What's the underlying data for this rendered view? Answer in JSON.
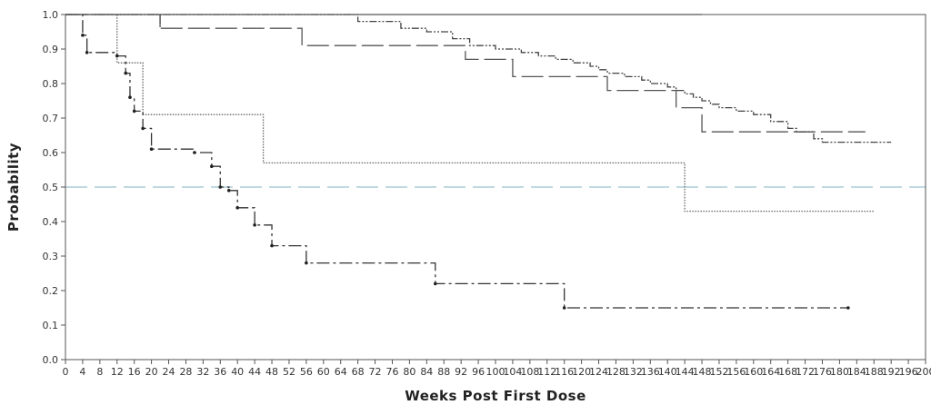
{
  "chart_data": {
    "type": "line",
    "title": "",
    "xlabel": "Weeks Post First Dose",
    "ylabel": "Probability",
    "xlim": [
      0,
      200
    ],
    "ylim": [
      0,
      1.0
    ],
    "x_ticks": [
      0,
      4,
      8,
      12,
      16,
      20,
      24,
      28,
      32,
      36,
      40,
      44,
      48,
      52,
      56,
      60,
      64,
      68,
      72,
      76,
      80,
      84,
      88,
      92,
      96,
      100,
      104,
      108,
      112,
      116,
      120,
      124,
      128,
      132,
      136,
      140,
      144,
      148,
      152,
      156,
      160,
      164,
      168,
      172,
      176,
      180,
      184,
      188,
      192,
      196,
      200
    ],
    "x_tick_labels": [
      "0",
      "4",
      "8",
      "12",
      "16",
      "20",
      "24",
      "28",
      "32",
      "36",
      "40",
      "44",
      "48",
      "52",
      "56",
      "60",
      "64",
      "68",
      "72",
      "76",
      "80",
      "84",
      "88",
      "92",
      "96",
      "100",
      "104",
      "108",
      "112",
      "116",
      "120",
      "124",
      "128",
      "132",
      "136",
      "140",
      "144",
      "148",
      "152",
      "156",
      "160",
      "164",
      "168",
      "172",
      "176",
      "180",
      "184",
      "188",
      "192",
      "196",
      "200"
    ],
    "y_ticks": [
      0,
      0.1,
      0.2,
      0.3,
      0.4,
      0.5,
      0.6,
      0.7,
      0.8,
      0.9,
      1.0
    ],
    "y_tick_labels": [
      "0.0",
      "0.1",
      "0.2",
      "0.3",
      "0.4",
      "0.5",
      "0.6",
      "0.7",
      "0.8",
      "0.9",
      "1.0"
    ],
    "reference_line": {
      "y": 0.5,
      "color": "#9cc3d0"
    },
    "series": [
      {
        "style": "solid",
        "color": "#555555",
        "steps": [
          [
            0,
            1.0
          ],
          [
            148,
            1.0
          ]
        ],
        "censor_marks": [
          22
        ]
      },
      {
        "style": "long-dash",
        "color": "#555555",
        "steps": [
          [
            0,
            1.0
          ],
          [
            22,
            0.96
          ],
          [
            55,
            0.91
          ],
          [
            93,
            0.87
          ],
          [
            104,
            0.82
          ],
          [
            126,
            0.78
          ],
          [
            142,
            0.73
          ],
          [
            148,
            0.66
          ],
          [
            186,
            0.66
          ]
        ],
        "censor_marks": []
      },
      {
        "style": "dash-dot-dot",
        "color": "#444444",
        "steps": [
          [
            0,
            1.0
          ],
          [
            68,
            0.98
          ],
          [
            78,
            0.96
          ],
          [
            84,
            0.95
          ],
          [
            90,
            0.93
          ],
          [
            94,
            0.91
          ],
          [
            100,
            0.9
          ],
          [
            106,
            0.89
          ],
          [
            110,
            0.88
          ],
          [
            114,
            0.87
          ],
          [
            118,
            0.86
          ],
          [
            122,
            0.85
          ],
          [
            124,
            0.84
          ],
          [
            126,
            0.83
          ],
          [
            130,
            0.82
          ],
          [
            134,
            0.81
          ],
          [
            136,
            0.8
          ],
          [
            140,
            0.79
          ],
          [
            142,
            0.78
          ],
          [
            144,
            0.77
          ],
          [
            146,
            0.76
          ],
          [
            148,
            0.75
          ],
          [
            150,
            0.74
          ],
          [
            152,
            0.73
          ],
          [
            156,
            0.72
          ],
          [
            160,
            0.71
          ],
          [
            164,
            0.69
          ],
          [
            168,
            0.67
          ],
          [
            170,
            0.66
          ],
          [
            174,
            0.64
          ],
          [
            176,
            0.63
          ],
          [
            192,
            0.63
          ]
        ],
        "censor_marks": []
      },
      {
        "style": "dotted",
        "color": "#666666",
        "steps": [
          [
            0,
            1.0
          ],
          [
            12,
            0.86
          ],
          [
            18,
            0.71
          ],
          [
            46,
            0.57
          ],
          [
            144,
            0.43
          ],
          [
            188,
            0.43
          ]
        ],
        "censor_marks": []
      },
      {
        "style": "dash-dot",
        "color": "#333333",
        "steps": [
          [
            0,
            1.0
          ],
          [
            4,
            0.94
          ],
          [
            5,
            0.89
          ],
          [
            12,
            0.88
          ],
          [
            14,
            0.83
          ],
          [
            15,
            0.76
          ],
          [
            16,
            0.72
          ],
          [
            18,
            0.67
          ],
          [
            20,
            0.61
          ],
          [
            30,
            0.6
          ],
          [
            34,
            0.56
          ],
          [
            36,
            0.5
          ],
          [
            38,
            0.49
          ],
          [
            40,
            0.44
          ],
          [
            44,
            0.39
          ],
          [
            48,
            0.33
          ],
          [
            56,
            0.28
          ],
          [
            86,
            0.22
          ],
          [
            116,
            0.15
          ],
          [
            182,
            0.15
          ]
        ],
        "censor_marks": []
      }
    ]
  }
}
